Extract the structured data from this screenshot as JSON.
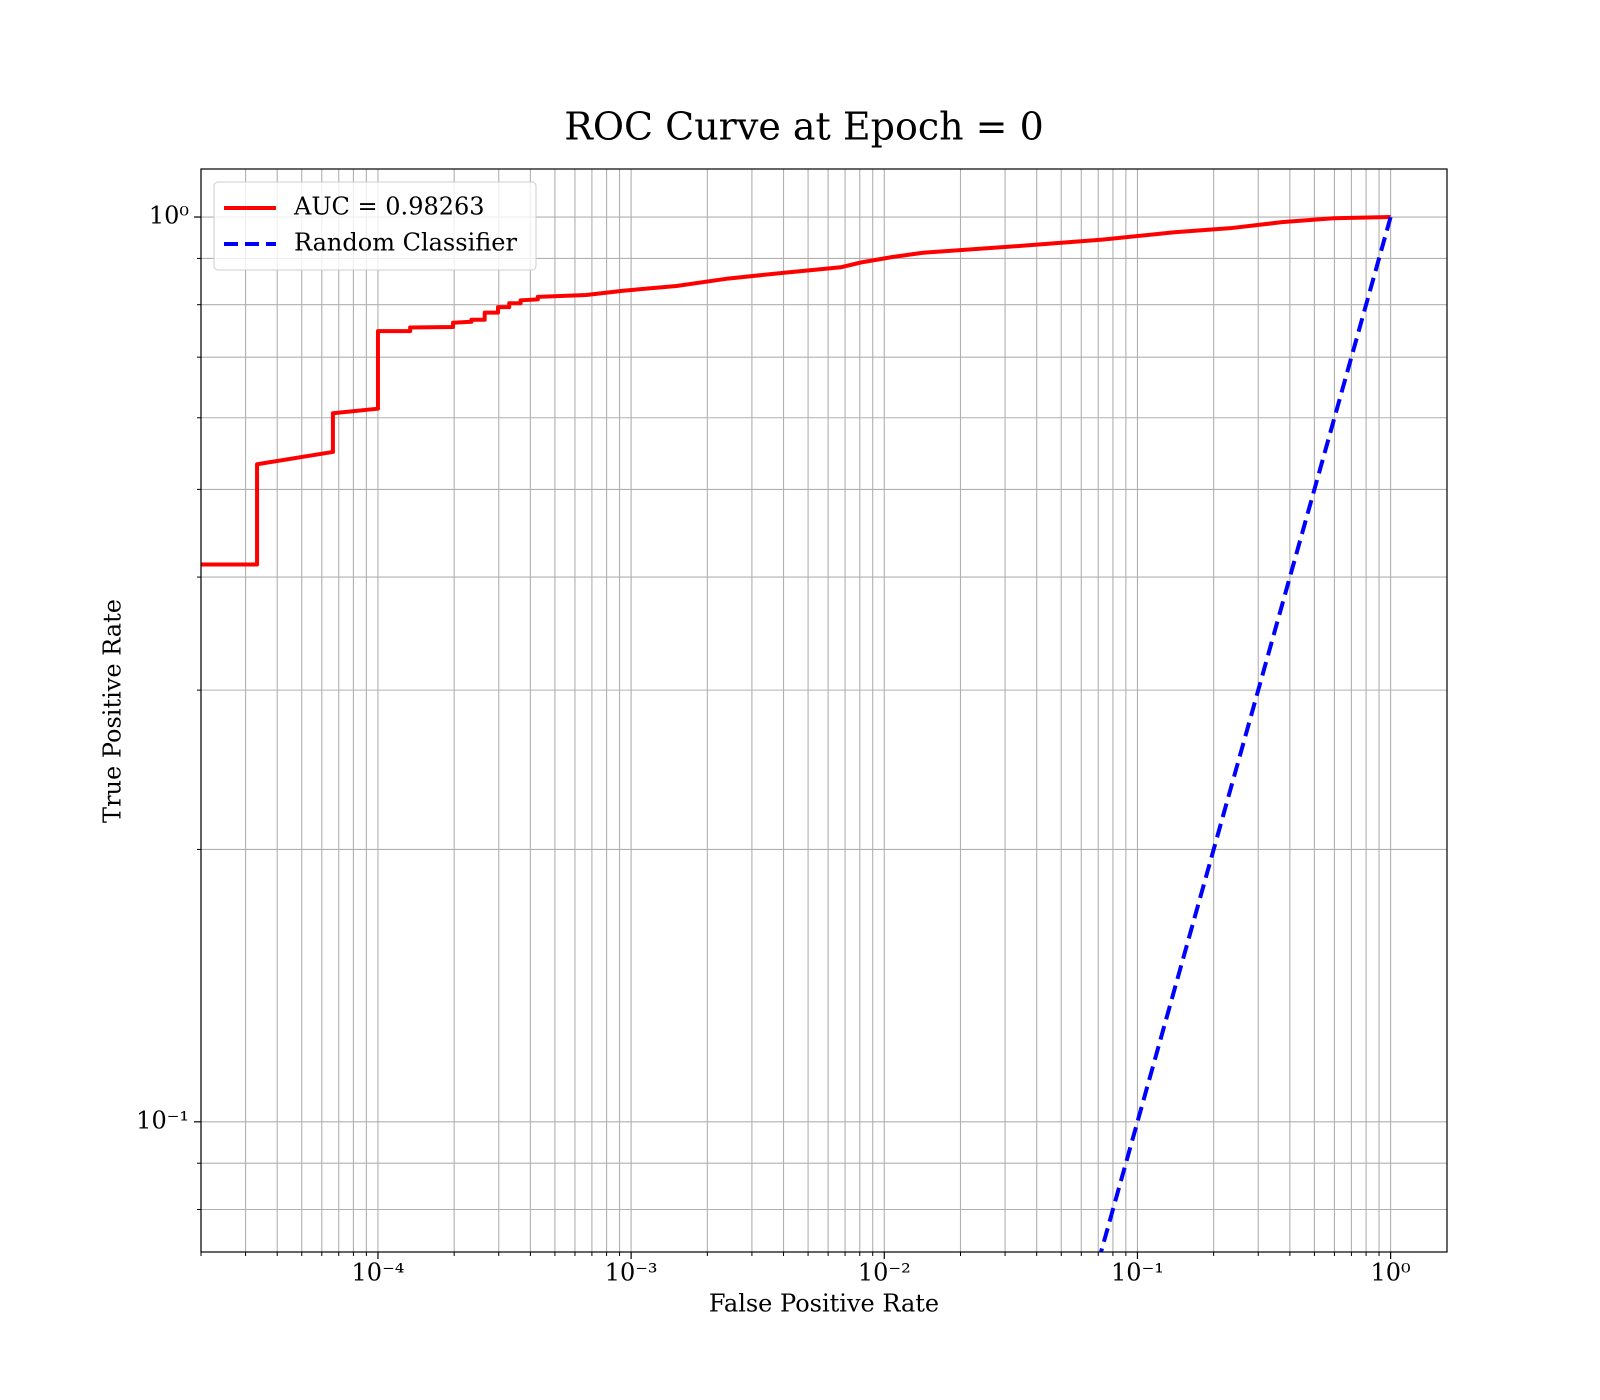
{
  "chart_data": {
    "type": "line",
    "title": "ROC Curve at Epoch = 0",
    "xlabel": "False Positive Rate",
    "ylabel": "True Positive Rate",
    "xscale": "log",
    "yscale": "log",
    "grid": true,
    "legend_loc": "upper left",
    "xlim": [
      2e-05,
      1.67
    ],
    "ylim": [
      0.0718,
      1.13
    ],
    "xticks": [
      {
        "value": 0.0001,
        "label": "10⁻⁴"
      },
      {
        "value": 0.001,
        "label": "10⁻³"
      },
      {
        "value": 0.01,
        "label": "10⁻²"
      },
      {
        "value": 0.1,
        "label": "10⁻¹"
      },
      {
        "value": 1,
        "label": "10⁰"
      }
    ],
    "xminorticks": [
      2e-05,
      3e-05,
      4e-05,
      5e-05,
      6e-05,
      7e-05,
      8e-05,
      9e-05,
      0.0002,
      0.0003,
      0.0004,
      0.0005,
      0.0006,
      0.0007,
      0.0008,
      0.0009,
      0.002,
      0.003,
      0.004,
      0.005,
      0.006,
      0.007,
      0.008,
      0.009,
      0.02,
      0.03,
      0.04,
      0.05,
      0.06,
      0.07,
      0.08,
      0.09,
      0.2,
      0.3,
      0.4,
      0.5,
      0.6,
      0.7,
      0.8,
      0.9
    ],
    "yticks": [
      {
        "value": 0.1,
        "label": "10⁻¹"
      },
      {
        "value": 1,
        "label": "10⁰"
      }
    ],
    "yminorticks": [
      0.08,
      0.09,
      0.2,
      0.3,
      0.4,
      0.5,
      0.6,
      0.7,
      0.8,
      0.9
    ],
    "series": [
      {
        "name": "AUC = 0.98263",
        "color": "#ff0000",
        "style": "solid",
        "x": [
          2e-05,
          3.33e-05,
          3.33e-05,
          6.64e-05,
          6.64e-05,
          0.0001,
          0.0001,
          0.000134,
          0.000134,
          0.000198,
          0.000198,
          0.000234,
          0.000234,
          0.000264,
          0.000264,
          0.000298,
          0.000298,
          0.00033,
          0.00033,
          0.000366,
          0.000366,
          0.000428,
          0.000428,
          0.000665,
          0.00093,
          0.00151,
          0.00241,
          0.00422,
          0.00673,
          0.00811,
          0.0107,
          0.0142,
          0.0361,
          0.0726,
          0.14,
          0.233,
          0.372,
          0.593,
          1
        ],
        "values": [
          0.413,
          0.413,
          0.533,
          0.55,
          0.607,
          0.614,
          0.748,
          0.748,
          0.755,
          0.756,
          0.764,
          0.766,
          0.77,
          0.77,
          0.784,
          0.784,
          0.795,
          0.795,
          0.803,
          0.803,
          0.809,
          0.811,
          0.816,
          0.82,
          0.829,
          0.839,
          0.855,
          0.869,
          0.88,
          0.891,
          0.903,
          0.913,
          0.93,
          0.944,
          0.962,
          0.972,
          0.987,
          0.997,
          1
        ]
      },
      {
        "name": "Random Classifier",
        "color": "#0000ff",
        "style": "dashed",
        "x": [
          0.07,
          1
        ],
        "values": [
          0.07,
          1
        ]
      }
    ]
  }
}
